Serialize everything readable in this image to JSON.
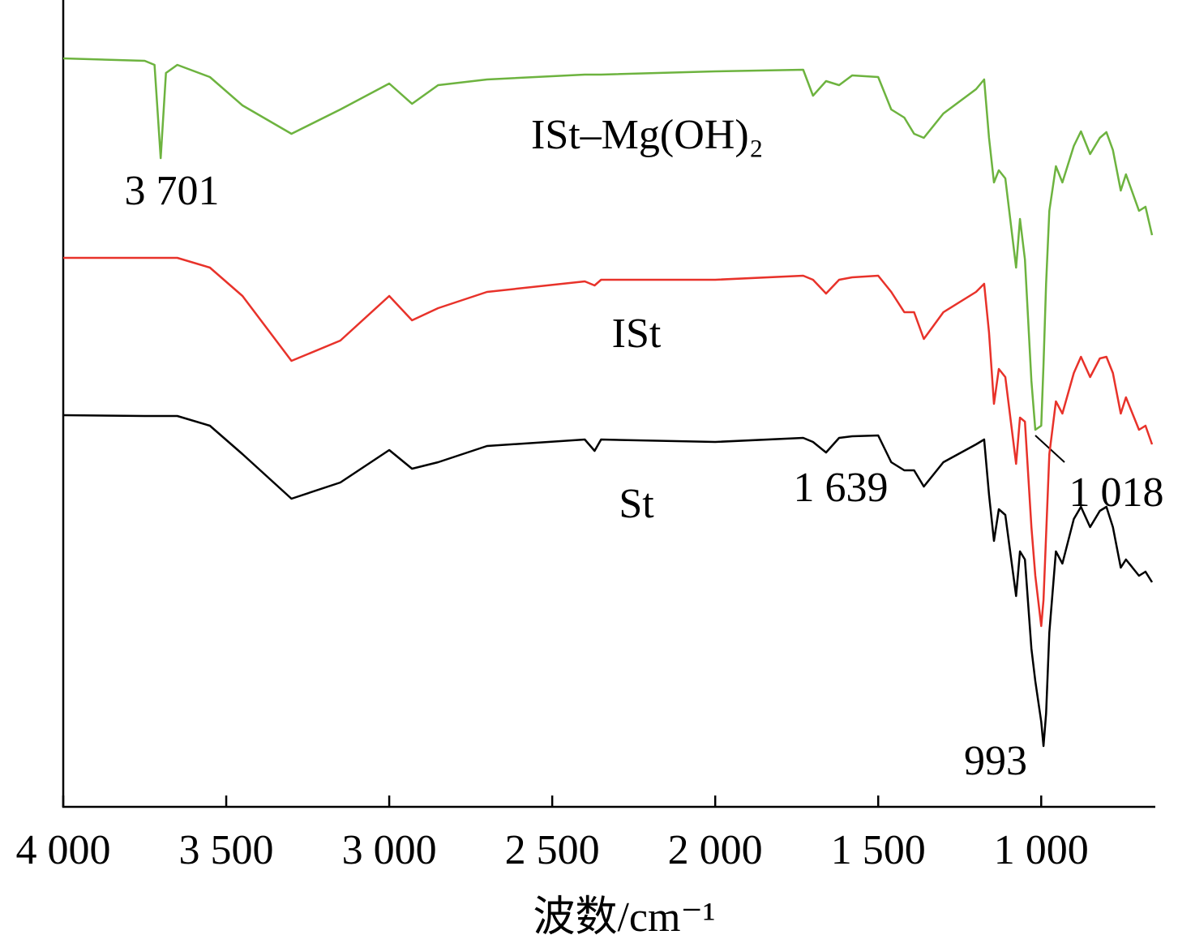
{
  "chart_data": {
    "type": "line",
    "x_label": "波数/cm⁻¹",
    "xlim": [
      4000,
      650
    ],
    "ylim": [
      0,
      995
    ],
    "xticks": [
      {
        "value": 4000,
        "label": "4 000"
      },
      {
        "value": 3500,
        "label": "3 500"
      },
      {
        "value": 3000,
        "label": "3 000"
      },
      {
        "value": 2500,
        "label": "2 500"
      },
      {
        "value": 2000,
        "label": "2 000"
      },
      {
        "value": 1500,
        "label": "1 500"
      },
      {
        "value": 1000,
        "label": "1 000"
      }
    ],
    "x": [
      4000,
      3750,
      3720,
      3701,
      3685,
      3650,
      3550,
      3450,
      3300,
      3150,
      3000,
      2930,
      2850,
      2700,
      2400,
      2370,
      2350,
      2000,
      1730,
      1700,
      1660,
      1620,
      1580,
      1500,
      1460,
      1420,
      1390,
      1360,
      1300,
      1200,
      1175,
      1160,
      1145,
      1130,
      1110,
      1077,
      1065,
      1050,
      1030,
      1018,
      1000,
      993,
      985,
      975,
      955,
      935,
      900,
      878,
      850,
      820,
      800,
      780,
      756,
      740,
      700,
      680,
      660
    ],
    "series": [
      {
        "name": "ISt–Mg(OH)₂",
        "color": "#6db33f",
        "values": [
          923,
          920,
          915,
          800,
          905,
          915,
          900,
          865,
          830,
          860,
          892,
          867,
          890,
          897,
          903,
          903,
          903,
          907,
          909,
          877,
          895,
          890,
          902,
          900,
          860,
          850,
          830,
          825,
          855,
          885,
          897,
          825,
          770,
          785,
          775,
          665,
          725,
          675,
          525,
          465,
          470,
          545,
          645,
          735,
          790,
          770,
          815,
          833,
          805,
          825,
          832,
          810,
          760,
          780,
          735,
          740,
          705
        ]
      },
      {
        "name": "ISt",
        "color": "#e8322a",
        "values": [
          677,
          677,
          677,
          677,
          677,
          677,
          665,
          630,
          550,
          575,
          630,
          600,
          615,
          635,
          648,
          643,
          650,
          650,
          655,
          650,
          633,
          650,
          653,
          655,
          635,
          610,
          610,
          577,
          610,
          635,
          645,
          585,
          497,
          540,
          530,
          423,
          480,
          475,
          345,
          285,
          223,
          255,
          335,
          435,
          500,
          485,
          535,
          555,
          530,
          553,
          555,
          535,
          485,
          505,
          465,
          470,
          447
        ]
      },
      {
        "name": "St",
        "color": "#000000",
        "values": [
          483,
          482,
          482,
          482,
          482,
          482,
          470,
          435,
          380,
          400,
          440,
          417,
          425,
          445,
          453,
          439,
          453,
          450,
          455,
          450,
          437,
          455,
          457,
          458,
          425,
          415,
          415,
          395,
          425,
          447,
          453,
          385,
          328,
          367,
          360,
          260,
          315,
          305,
          195,
          155,
          105,
          75,
          115,
          215,
          315,
          300,
          355,
          370,
          345,
          365,
          370,
          345,
          295,
          305,
          285,
          290,
          277
        ]
      }
    ],
    "annotations": [
      "3 701",
      "1 639",
      "1 018",
      "993"
    ]
  }
}
